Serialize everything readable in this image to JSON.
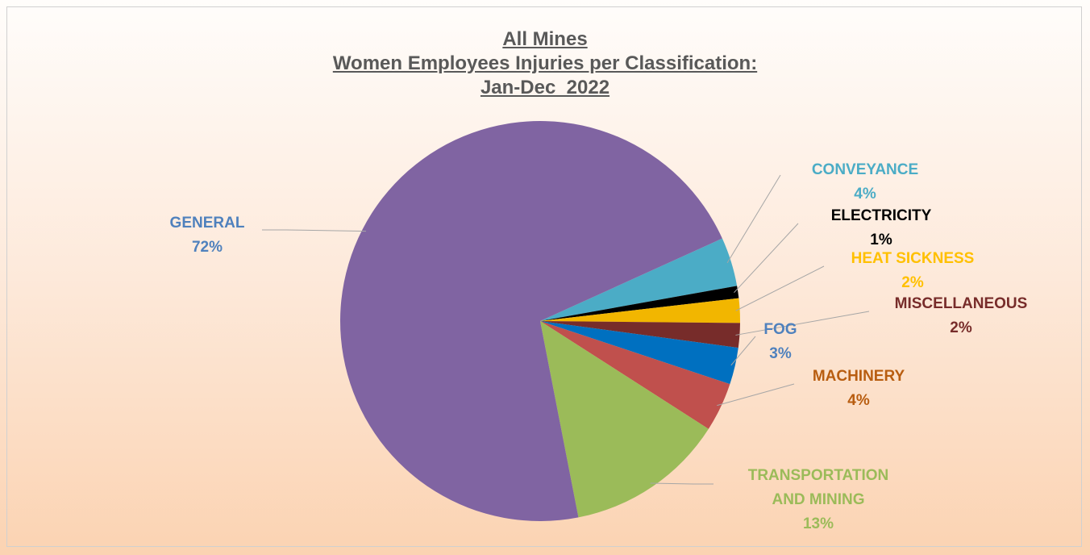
{
  "chart_data": {
    "type": "pie",
    "title": [
      "All Mines",
      "Women Employees Injuries per Classification:",
      "Jan-Dec  2022"
    ],
    "categories": [
      "CONVEYANCE",
      "ELECTRICITY",
      "HEAT SICKNESS",
      "MISCELLANEOUS",
      "FOG",
      "MACHINERY",
      "TRANSPORTATION AND MINING",
      "GENERAL"
    ],
    "values": [
      4,
      1,
      2,
      2,
      3,
      4,
      13,
      72
    ],
    "value_labels": [
      "4%",
      "1%",
      "2%",
      "2%",
      "3%",
      "4%",
      "13%",
      "72%"
    ],
    "colors": [
      "#4bacc6",
      "#000000",
      "#f2b600",
      "#772c2a",
      "#0070c0",
      "#c0504d",
      "#9bbb59",
      "#8064a2"
    ],
    "label_colors": [
      "#4bacc6",
      "#000000",
      "#ffc000",
      "#772c2a",
      "#4f81bd",
      "#b85d10",
      "#9bbb59",
      "#4f81bd"
    ]
  }
}
